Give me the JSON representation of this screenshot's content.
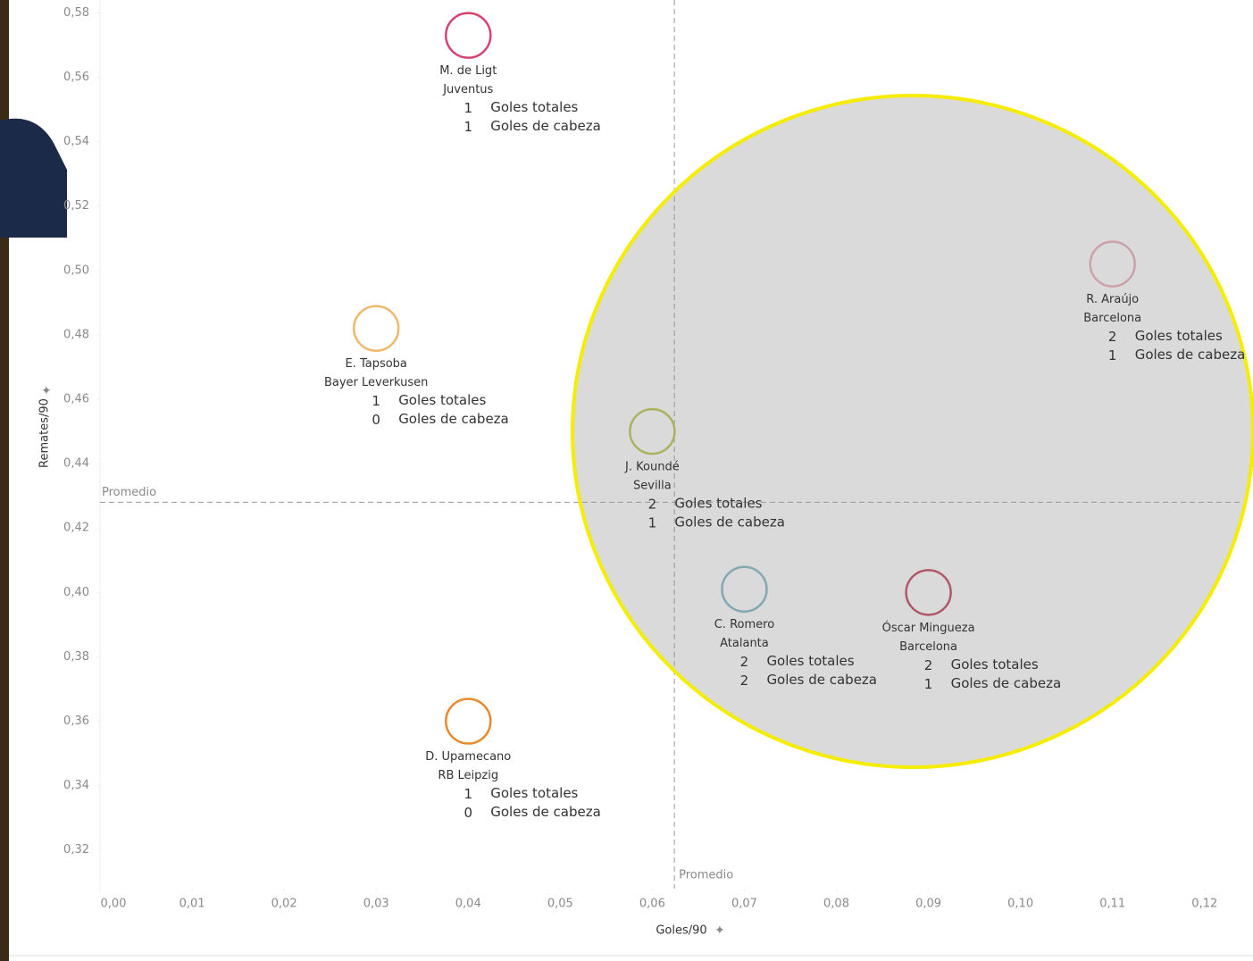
{
  "chart_data": {
    "type": "scatter",
    "x_label": "Goles/90",
    "y_label": "Remates/90",
    "xlim": [
      0,
      0.124
    ],
    "ylim": [
      0.308,
      0.584
    ],
    "xticks": [
      {
        "value": 0,
        "label": "0,00"
      },
      {
        "value": 0.01,
        "label": "0,01"
      },
      {
        "value": 0.02,
        "label": "0,02"
      },
      {
        "value": 0.03,
        "label": "0,03"
      },
      {
        "value": 0.04,
        "label": "0,04"
      },
      {
        "value": 0.05,
        "label": "0,05"
      },
      {
        "value": 0.06,
        "label": "0,06"
      },
      {
        "value": 0.07,
        "label": "0,07"
      },
      {
        "value": 0.08,
        "label": "0,08"
      },
      {
        "value": 0.09,
        "label": "0,09"
      },
      {
        "value": 0.1,
        "label": "0,10"
      },
      {
        "value": 0.11,
        "label": "0,11"
      },
      {
        "value": 0.12,
        "label": "0,12"
      }
    ],
    "yticks": [
      {
        "value": 0.32,
        "label": "0,32"
      },
      {
        "value": 0.34,
        "label": "0,34"
      },
      {
        "value": 0.36,
        "label": "0,36"
      },
      {
        "value": 0.38,
        "label": "0,38"
      },
      {
        "value": 0.4,
        "label": "0,40"
      },
      {
        "value": 0.42,
        "label": "0,42"
      },
      {
        "value": 0.44,
        "label": "0,44"
      },
      {
        "value": 0.46,
        "label": "0,46"
      },
      {
        "value": 0.48,
        "label": "0,48"
      },
      {
        "value": 0.5,
        "label": "0,50"
      },
      {
        "value": 0.52,
        "label": "0,52"
      },
      {
        "value": 0.54,
        "label": "0,54"
      },
      {
        "value": 0.56,
        "label": "0,56"
      },
      {
        "value": 0.58,
        "label": "0,58"
      }
    ],
    "reference_label": "Promedio",
    "avg_x": 0.0624,
    "avg_y": 0.428,
    "totals_label": "Goles totales",
    "header_label": "Goles de cabeza",
    "points": [
      {
        "name": "M. de Ligt",
        "team": "Juventus",
        "x": 0.04,
        "y": 0.573,
        "goles_totales": 1,
        "goles_cabeza": 1,
        "color": "#d6436e"
      },
      {
        "name": "E. Tapsoba",
        "team": "Bayer Leverkusen",
        "x": 0.03,
        "y": 0.482,
        "goles_totales": 1,
        "goles_cabeza": 0,
        "color": "#f0b86b"
      },
      {
        "name": "D. Upamecano",
        "team": "RB Leipzig",
        "x": 0.04,
        "y": 0.36,
        "goles_totales": 1,
        "goles_cabeza": 0,
        "color": "#e88a2c"
      },
      {
        "name": "J. Koundé",
        "team": "Sevilla",
        "x": 0.06,
        "y": 0.45,
        "goles_totales": 2,
        "goles_cabeza": 1,
        "color": "#b9c23c"
      },
      {
        "name": "C. Romero",
        "team": "Atalanta",
        "x": 0.07,
        "y": 0.401,
        "goles_totales": 2,
        "goles_cabeza": 2,
        "color": "#77b3c4"
      },
      {
        "name": "Óscar Mingueza",
        "team": "Barcelona",
        "x": 0.09,
        "y": 0.4,
        "goles_totales": 2,
        "goles_cabeza": 1,
        "color": "#c2374f"
      },
      {
        "name": "R. Araújo",
        "team": "Barcelona",
        "x": 0.11,
        "y": 0.502,
        "goles_totales": 2,
        "goles_cabeza": 1,
        "color": "#e8a9b4"
      }
    ]
  }
}
